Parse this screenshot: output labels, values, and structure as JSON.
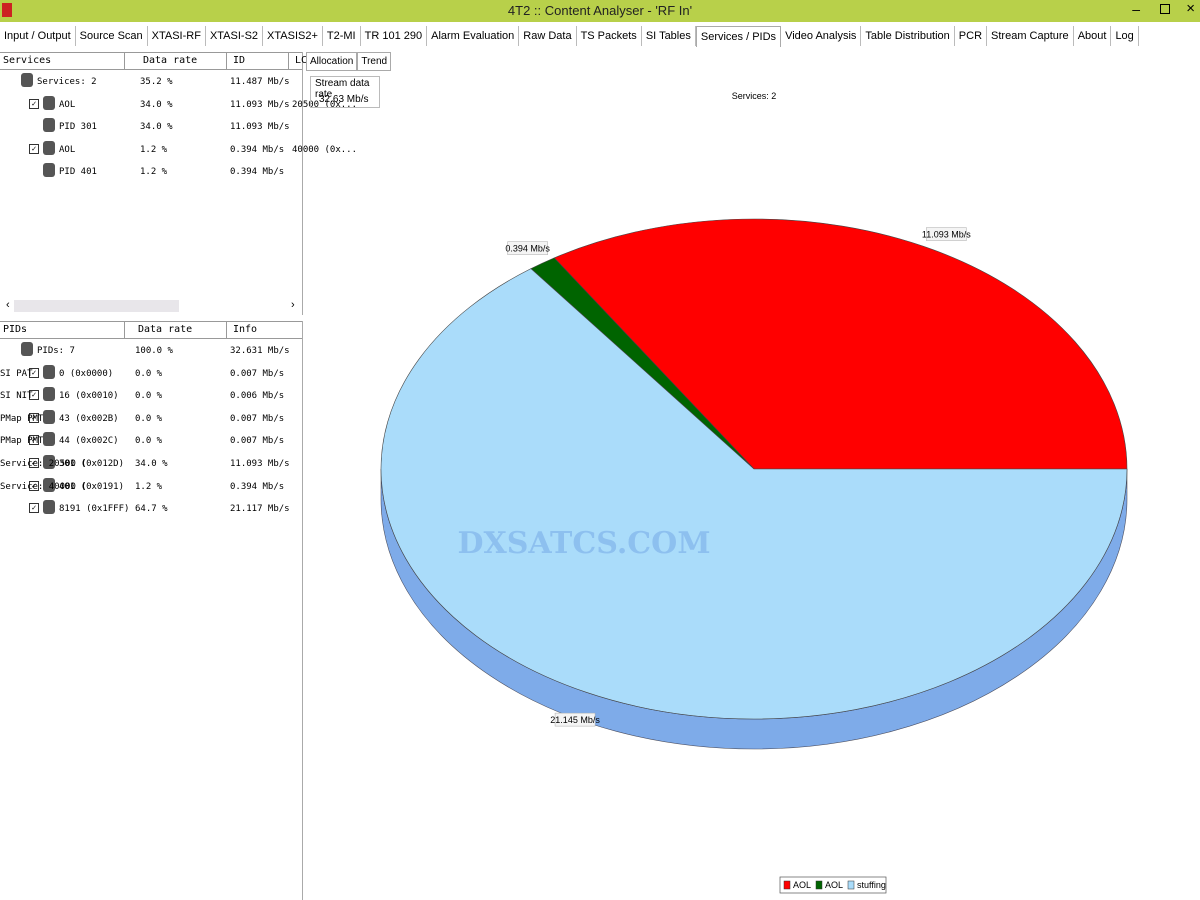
{
  "window": {
    "title": "4T2 :: Content Analyser - 'RF In'"
  },
  "tabs": [
    "Input / Output",
    "Source Scan",
    "XTASI-RF",
    "XTASI-S2",
    "XTASIS2+",
    "T2-MI",
    "TR 101 290",
    "Alarm Evaluation",
    "Raw Data",
    "TS Packets",
    "SI Tables",
    "Services / PIDs",
    "Video Analysis",
    "Table Distribution",
    "PCR",
    "Stream Capture",
    "About",
    "Log"
  ],
  "services_table": {
    "columns": [
      "Services",
      "Data rate",
      "ID",
      "LC"
    ],
    "rows": [
      [
        "Services: 2",
        "35.2 %",
        "11.487 Mb/s"
      ],
      [
        "AOL",
        "34.0 %",
        "11.093 Mb/s",
        "20500 (0x..."
      ],
      [
        "PID 301",
        "34.0 %",
        "11.093 Mb/s"
      ],
      [
        "AOL",
        "1.2 %",
        "0.394 Mb/s",
        "40000 (0x..."
      ],
      [
        "PID 401",
        "1.2 %",
        "0.394 Mb/s"
      ]
    ]
  },
  "pids_table": {
    "columns": [
      "PIDs",
      "Data rate",
      "Info"
    ],
    "rows": [
      [
        "PIDs: 7",
        "100.0 %",
        "32.631 Mb/s"
      ],
      [
        "0 (0x0000)",
        "0.0 %",
        "0.007 Mb/s",
        "SI PAT"
      ],
      [
        "16 (0x0010)",
        "0.0 %",
        "0.006 Mb/s",
        "SI NIT"
      ],
      [
        "43 (0x002B)",
        "0.0 %",
        "0.007 Mb/s",
        "PMap PMT"
      ],
      [
        "44 (0x002C)",
        "0.0 %",
        "0.007 Mb/s",
        "PMap PMT"
      ],
      [
        "301 (0x012D)",
        "34.0 %",
        "11.093 Mb/s",
        "Service: 20500 ("
      ],
      [
        "401 (0x0191)",
        "1.2 %",
        "0.394 Mb/s",
        "Service: 40000 ("
      ],
      [
        "8191 (0x1FFF)",
        "64.7 %",
        "21.117 Mb/s"
      ]
    ]
  },
  "chart_panel": {
    "tabs": [
      "Allocation",
      "Trend"
    ],
    "rate_label": "Stream data rate",
    "rate_value": "32.63 Mb/s",
    "watermark": "DXSATCS.COM"
  },
  "chart_data": {
    "type": "pie",
    "title": "Services: 2",
    "categories": [
      "AOL",
      "AOL",
      "stuffing"
    ],
    "values": [
      11.093,
      0.394,
      21.145
    ],
    "value_labels": [
      "11.093 Mb/s",
      "0.394 Mb/s",
      "21.145 Mb/s"
    ],
    "colors": [
      "#ff0000",
      "#006400",
      "#aadcfa"
    ],
    "legend": "bottom"
  }
}
